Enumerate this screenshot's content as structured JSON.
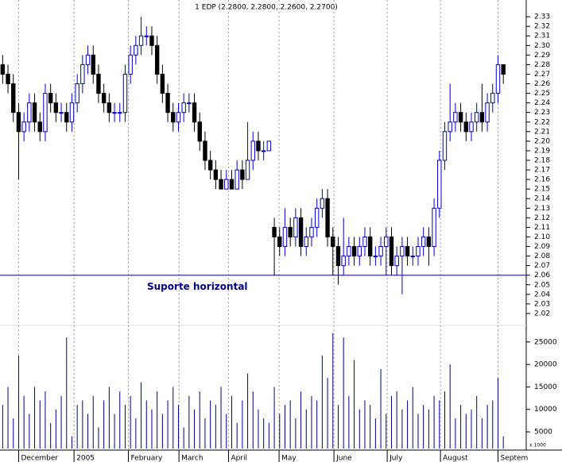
{
  "chart_data": {
    "type": "candlestick",
    "title": "1 EDP (2.2800, 2.2800, 2.2600, 2.2700)",
    "annotation": "Suporte horizontal",
    "support_value": 2.06,
    "up_color": "#0000cc",
    "down_color": "#000000",
    "volume_color": "#00008b",
    "line_color": "#00008b",
    "grid": true,
    "xlim": [
      -0.5,
      98.3
    ],
    "xticks": [
      {
        "value": 3,
        "label": "December"
      },
      {
        "value": 13.4,
        "label": "2005"
      },
      {
        "value": 23.6,
        "label": "February"
      },
      {
        "value": 33.1,
        "label": "March"
      },
      {
        "value": 42.4,
        "label": "April"
      },
      {
        "value": 51.9,
        "label": "May"
      },
      {
        "value": 62.2,
        "label": "June"
      },
      {
        "value": 72.2,
        "label": "July"
      },
      {
        "value": 82.2,
        "label": "August"
      },
      {
        "value": 93,
        "label": "Septem"
      }
    ],
    "ylim": [
      2.0075,
      2.3475
    ],
    "yticks": [
      2.02,
      2.03,
      2.04,
      2.05,
      2.06,
      2.07,
      2.08,
      2.09,
      {
        "value": 2.1,
        "label": "2.10"
      },
      2.11,
      2.12,
      2.13,
      2.14,
      2.15,
      2.16,
      2.17,
      2.18,
      2.19,
      {
        "value": 2.2,
        "label": "2.20"
      },
      2.21,
      2.22,
      2.23,
      2.24,
      2.25,
      2.26,
      2.27,
      2.28,
      2.29,
      {
        "value": 2.3,
        "label": "2.30"
      },
      2.31,
      2.32,
      2.33
    ],
    "open": [
      2.28,
      2.27,
      2.26,
      2.23,
      2.21,
      2.22,
      2.24,
      2.22,
      2.21,
      2.25,
      2.24,
      2.23,
      2.23,
      2.22,
      2.24,
      2.26,
      2.28,
      2.29,
      2.27,
      2.25,
      2.24,
      2.23,
      2.23,
      2.23,
      2.27,
      2.29,
      2.3,
      2.31,
      2.31,
      2.3,
      2.27,
      2.25,
      2.23,
      2.22,
      2.23,
      2.24,
      2.24,
      2.22,
      2.2,
      2.18,
      2.17,
      2.16,
      2.15,
      2.16,
      2.15,
      2.17,
      2.16,
      2.18,
      2.2,
      2.19,
      2.19,
      2.11,
      2.1,
      2.09,
      2.11,
      2.1,
      2.12,
      2.09,
      2.1,
      2.11,
      2.13,
      2.14,
      2.1,
      2.09,
      2.07,
      2.08,
      2.09,
      2.08,
      2.09,
      2.1,
      2.08,
      2.08,
      2.09,
      2.1,
      2.07,
      2.08,
      2.09,
      2.08,
      2.08,
      2.09,
      2.1,
      2.09,
      2.13,
      2.18,
      2.21,
      2.22,
      2.23,
      2.22,
      2.21,
      2.22,
      2.23,
      2.22,
      2.24,
      2.25,
      2.28
    ],
    "high": [
      2.29,
      2.28,
      2.27,
      2.24,
      2.23,
      2.25,
      2.25,
      2.23,
      2.26,
      2.26,
      2.25,
      2.24,
      2.24,
      2.25,
      2.27,
      2.29,
      2.3,
      2.3,
      2.28,
      2.26,
      2.25,
      2.24,
      2.24,
      2.28,
      2.3,
      2.31,
      2.33,
      2.32,
      2.32,
      2.31,
      2.28,
      2.26,
      2.24,
      2.24,
      2.25,
      2.25,
      2.25,
      2.23,
      2.21,
      2.19,
      2.18,
      2.17,
      2.17,
      2.17,
      2.18,
      2.18,
      2.22,
      2.21,
      2.21,
      2.2,
      2.2,
      2.12,
      2.11,
      2.13,
      2.12,
      2.13,
      2.13,
      2.11,
      2.12,
      2.14,
      2.15,
      2.15,
      2.11,
      2.1,
      2.12,
      2.1,
      2.1,
      2.1,
      2.11,
      2.11,
      2.09,
      2.1,
      2.11,
      2.11,
      2.09,
      2.1,
      2.1,
      2.09,
      2.1,
      2.11,
      2.11,
      2.14,
      2.19,
      2.22,
      2.26,
      2.24,
      2.24,
      2.23,
      2.23,
      2.24,
      2.26,
      2.25,
      2.26,
      2.29,
      2.28
    ],
    "low": [
      2.26,
      2.25,
      2.22,
      2.16,
      2.2,
      2.21,
      2.21,
      2.2,
      2.2,
      2.23,
      2.22,
      2.22,
      2.21,
      2.21,
      2.23,
      2.25,
      2.27,
      2.26,
      2.24,
      2.23,
      2.22,
      2.22,
      2.22,
      2.22,
      2.26,
      2.28,
      2.29,
      2.3,
      2.29,
      2.26,
      2.24,
      2.22,
      2.21,
      2.21,
      2.22,
      2.23,
      2.21,
      2.19,
      2.17,
      2.16,
      2.15,
      2.15,
      2.15,
      2.15,
      2.15,
      2.15,
      2.16,
      2.17,
      2.18,
      2.18,
      2.19,
      2.06,
      2.08,
      2.08,
      2.09,
      2.09,
      2.08,
      2.08,
      2.09,
      2.1,
      2.12,
      2.09,
      2.06,
      2.05,
      2.06,
      2.07,
      2.07,
      2.07,
      2.08,
      2.07,
      2.07,
      2.07,
      2.06,
      2.06,
      2.06,
      2.04,
      2.07,
      2.07,
      2.07,
      2.08,
      2.07,
      2.08,
      2.12,
      2.17,
      2.2,
      2.21,
      2.21,
      2.2,
      2.2,
      2.21,
      2.21,
      2.21,
      2.23,
      2.24,
      2.26
    ],
    "close": [
      2.27,
      2.26,
      2.23,
      2.21,
      2.22,
      2.24,
      2.22,
      2.21,
      2.25,
      2.24,
      2.23,
      2.23,
      2.22,
      2.24,
      2.26,
      2.28,
      2.29,
      2.27,
      2.25,
      2.24,
      2.23,
      2.23,
      2.23,
      2.27,
      2.29,
      2.3,
      2.31,
      2.31,
      2.3,
      2.27,
      2.25,
      2.23,
      2.22,
      2.23,
      2.24,
      2.24,
      2.22,
      2.2,
      2.18,
      2.17,
      2.16,
      2.15,
      2.16,
      2.15,
      2.17,
      2.16,
      2.18,
      2.2,
      2.19,
      2.19,
      2.2,
      2.1,
      2.09,
      2.11,
      2.1,
      2.12,
      2.09,
      2.1,
      2.11,
      2.13,
      2.14,
      2.1,
      2.09,
      2.07,
      2.08,
      2.09,
      2.08,
      2.09,
      2.1,
      2.08,
      2.08,
      2.09,
      2.1,
      2.07,
      2.08,
      2.09,
      2.08,
      2.08,
      2.09,
      2.1,
      2.09,
      2.13,
      2.18,
      2.21,
      2.22,
      2.23,
      2.22,
      2.21,
      2.22,
      2.23,
      2.22,
      2.24,
      2.25,
      2.28,
      2.27
    ],
    "volume": [
      11000,
      15000,
      8000,
      22000,
      13000,
      9000,
      15000,
      12000,
      14000,
      7000,
      10000,
      13000,
      26000,
      4000,
      11000,
      12000,
      9000,
      13000,
      6000,
      12000,
      15000,
      9000,
      14000,
      11000,
      13000,
      8000,
      16000,
      12000,
      10000,
      14000,
      9000,
      12000,
      15000,
      11000,
      6000,
      13000,
      10000,
      14000,
      8000,
      12000,
      11000,
      15000,
      9000,
      13000,
      7000,
      12000,
      18000,
      14000,
      10000,
      8000,
      7000,
      15000,
      9000,
      11000,
      12000,
      8000,
      14000,
      10000,
      13000,
      12000,
      22000,
      17000,
      27000,
      11000,
      26000,
      13000,
      21000,
      10000,
      12000,
      11000,
      8000,
      19000,
      9000,
      13000,
      14000,
      10000,
      12000,
      15000,
      9000,
      11000,
      10000,
      13000,
      12000,
      14000,
      20000,
      8000,
      11000,
      9000,
      10000,
      13000,
      8000,
      11000,
      12000,
      17000,
      4000
    ],
    "volume_ylim": [
      1300,
      28500
    ],
    "volume_ticks": [
      5000,
      10000,
      15000,
      20000,
      25000
    ],
    "volume_unit_label": "x 1000"
  }
}
